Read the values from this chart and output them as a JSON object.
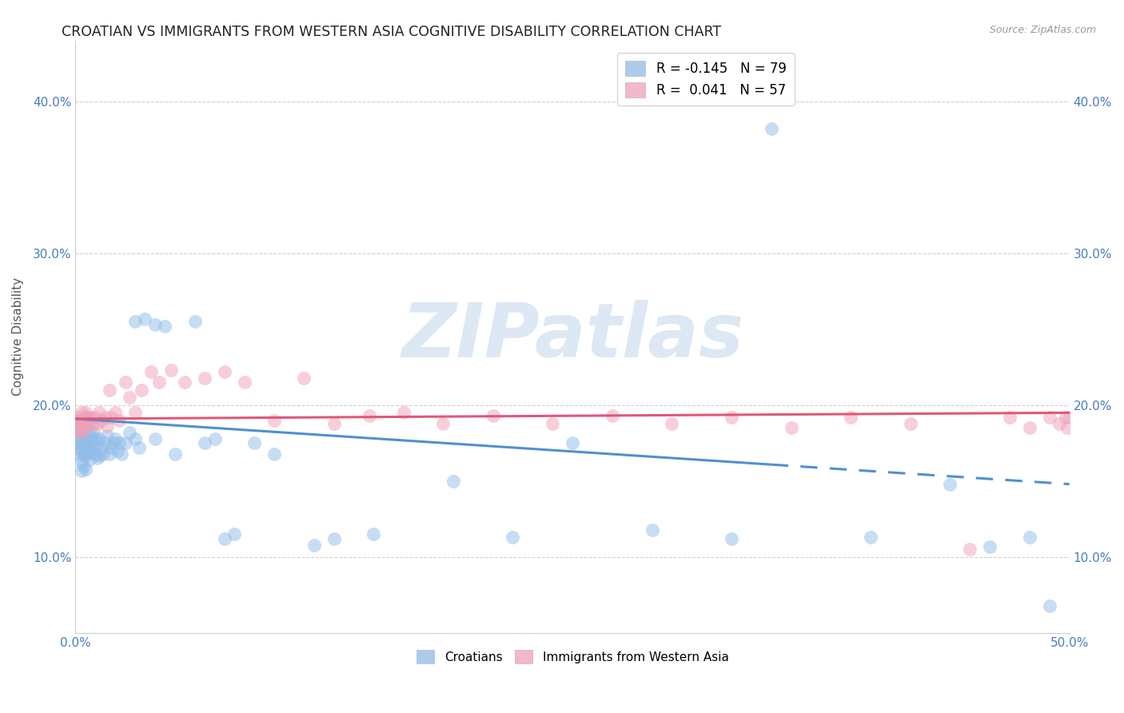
{
  "title": "CROATIAN VS IMMIGRANTS FROM WESTERN ASIA COGNITIVE DISABILITY CORRELATION CHART",
  "source": "Source: ZipAtlas.com",
  "ylabel": "Cognitive Disability",
  "xlim": [
    0.0,
    0.5
  ],
  "ylim": [
    0.05,
    0.44
  ],
  "yticks": [
    0.1,
    0.2,
    0.3,
    0.4
  ],
  "xticks": [
    0.0,
    0.1,
    0.2,
    0.3,
    0.4,
    0.5
  ],
  "ytick_labels": [
    "10.0%",
    "20.0%",
    "30.0%",
    "40.0%"
  ],
  "legend1_label": "R = -0.145   N = 79",
  "legend2_label": "R =  0.041   N = 57",
  "series1_color": "#90bce8",
  "series2_color": "#f0a0b8",
  "trendline1_color": "#5090d0",
  "trendline2_color": "#e05878",
  "watermark": "ZIPatlas",
  "watermark_color": "#dce8f4",
  "background_color": "#ffffff",
  "grid_color": "#d0d0d0",
  "title_color": "#222222",
  "title_fontsize": 12.5,
  "label_fontsize": 11,
  "tick_fontsize": 11,
  "tick_color": "#4a7cc0",
  "series1_x": [
    0.001,
    0.001,
    0.001,
    0.002,
    0.002,
    0.002,
    0.002,
    0.003,
    0.003,
    0.003,
    0.003,
    0.003,
    0.004,
    0.004,
    0.004,
    0.004,
    0.005,
    0.005,
    0.005,
    0.005,
    0.005,
    0.006,
    0.006,
    0.006,
    0.007,
    0.007,
    0.007,
    0.008,
    0.008,
    0.009,
    0.009,
    0.01,
    0.01,
    0.011,
    0.011,
    0.012,
    0.012,
    0.013,
    0.014,
    0.015,
    0.016,
    0.017,
    0.018,
    0.019,
    0.02,
    0.021,
    0.022,
    0.023,
    0.025,
    0.027,
    0.03,
    0.03,
    0.032,
    0.035,
    0.04,
    0.04,
    0.045,
    0.05,
    0.06,
    0.065,
    0.07,
    0.075,
    0.08,
    0.09,
    0.1,
    0.12,
    0.13,
    0.15,
    0.19,
    0.22,
    0.25,
    0.29,
    0.33,
    0.35,
    0.4,
    0.44,
    0.46,
    0.48,
    0.49
  ],
  "series1_y": [
    0.183,
    0.177,
    0.172,
    0.19,
    0.182,
    0.175,
    0.168,
    0.188,
    0.178,
    0.17,
    0.163,
    0.157,
    0.185,
    0.175,
    0.168,
    0.16,
    0.192,
    0.183,
    0.175,
    0.167,
    0.158,
    0.185,
    0.177,
    0.169,
    0.182,
    0.173,
    0.164,
    0.178,
    0.169,
    0.182,
    0.172,
    0.178,
    0.168,
    0.175,
    0.165,
    0.178,
    0.167,
    0.172,
    0.168,
    0.175,
    0.18,
    0.168,
    0.172,
    0.175,
    0.178,
    0.17,
    0.175,
    0.168,
    0.175,
    0.182,
    0.178,
    0.255,
    0.172,
    0.257,
    0.178,
    0.253,
    0.252,
    0.168,
    0.255,
    0.175,
    0.178,
    0.112,
    0.115,
    0.175,
    0.168,
    0.108,
    0.112,
    0.115,
    0.15,
    0.113,
    0.175,
    0.118,
    0.112,
    0.382,
    0.113,
    0.148,
    0.107,
    0.113,
    0.068
  ],
  "series2_x": [
    0.001,
    0.001,
    0.002,
    0.002,
    0.003,
    0.003,
    0.004,
    0.004,
    0.005,
    0.005,
    0.006,
    0.007,
    0.008,
    0.009,
    0.01,
    0.011,
    0.012,
    0.013,
    0.015,
    0.016,
    0.017,
    0.018,
    0.02,
    0.022,
    0.025,
    0.027,
    0.03,
    0.033,
    0.038,
    0.042,
    0.048,
    0.055,
    0.065,
    0.075,
    0.085,
    0.1,
    0.115,
    0.13,
    0.148,
    0.165,
    0.185,
    0.21,
    0.24,
    0.27,
    0.3,
    0.33,
    0.36,
    0.39,
    0.42,
    0.45,
    0.47,
    0.48,
    0.49,
    0.495,
    0.498,
    0.499,
    0.5
  ],
  "series2_y": [
    0.192,
    0.185,
    0.19,
    0.182,
    0.195,
    0.187,
    0.19,
    0.183,
    0.195,
    0.188,
    0.192,
    0.187,
    0.192,
    0.188,
    0.192,
    0.188,
    0.195,
    0.19,
    0.192,
    0.186,
    0.21,
    0.192,
    0.195,
    0.19,
    0.215,
    0.205,
    0.195,
    0.21,
    0.222,
    0.215,
    0.223,
    0.215,
    0.218,
    0.222,
    0.215,
    0.19,
    0.218,
    0.188,
    0.193,
    0.195,
    0.188,
    0.193,
    0.188,
    0.193,
    0.188,
    0.192,
    0.185,
    0.192,
    0.188,
    0.105,
    0.192,
    0.185,
    0.192,
    0.188,
    0.192,
    0.185,
    0.192
  ],
  "trendline1_x_start": 0.0,
  "trendline1_x_end": 0.5,
  "trendline1_y_start": 0.191,
  "trendline1_y_end": 0.148,
  "trendline1_solid_end": 0.35,
  "trendline2_x_start": 0.0,
  "trendline2_x_end": 0.5,
  "trendline2_y_start": 0.191,
  "trendline2_y_end": 0.195
}
